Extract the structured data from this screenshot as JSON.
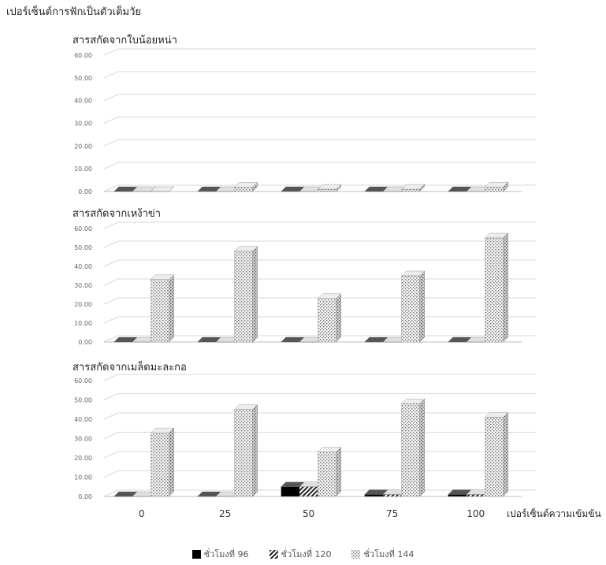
{
  "chart_data": {
    "type": "bar",
    "ylabel": "เปอร์เซ็นต์การฟักเป็นตัวเต็มวัย",
    "xlabel": "เปอร์เซ็นต์ความเข้มข้น",
    "categories": [
      "0",
      "25",
      "50",
      "75",
      "100"
    ],
    "ylim": [
      0,
      60
    ],
    "yticks": [
      "0.00",
      "10.00",
      "20.00",
      "30.00",
      "40.00",
      "50.00",
      "60.00"
    ],
    "grid": true,
    "legend_position": "bottom",
    "series_names": [
      "ชั่วโมงที่ 96",
      "ชั่วโมงที่ 120",
      "ชั่วโมงที่ 144"
    ],
    "panels": [
      {
        "title": "สารสกัดจากใบน้อยหน่า",
        "series": [
          {
            "name": "ชั่วโมงที่ 96",
            "values": [
              0,
              0,
              0,
              0,
              0
            ]
          },
          {
            "name": "ชั่วโมงที่ 120",
            "values": [
              0,
              0,
              0,
              0,
              0
            ]
          },
          {
            "name": "ชั่วโมงที่ 144",
            "values": [
              0,
              2,
              1,
              1,
              2
            ]
          }
        ]
      },
      {
        "title": "สารสกัดจากเหง้าข่า",
        "series": [
          {
            "name": "ชั่วโมงที่ 96",
            "values": [
              0,
              0,
              0,
              0,
              0
            ]
          },
          {
            "name": "ชั่วโมงที่ 120",
            "values": [
              0,
              0,
              0,
              0,
              0
            ]
          },
          {
            "name": "ชั่วโมงที่ 144",
            "values": [
              33,
              48,
              23,
              35,
              55
            ]
          }
        ]
      },
      {
        "title": "สารสกัดจากเมล็ดมะละกอ",
        "series": [
          {
            "name": "ชั่วโมงที่ 96",
            "values": [
              0,
              0,
              5,
              1,
              1
            ]
          },
          {
            "name": "ชั่วโมงที่ 120",
            "values": [
              0,
              0,
              5,
              1,
              1
            ]
          },
          {
            "name": "ชั่วโมงที่ 144",
            "values": [
              33,
              45,
              23,
              48,
              41
            ]
          }
        ]
      }
    ],
    "colors": {
      "series1": "#000000",
      "series2": "#333333",
      "series3": "#dddddd",
      "grid": "#d9d9d9",
      "axis_text": "#666666"
    }
  }
}
